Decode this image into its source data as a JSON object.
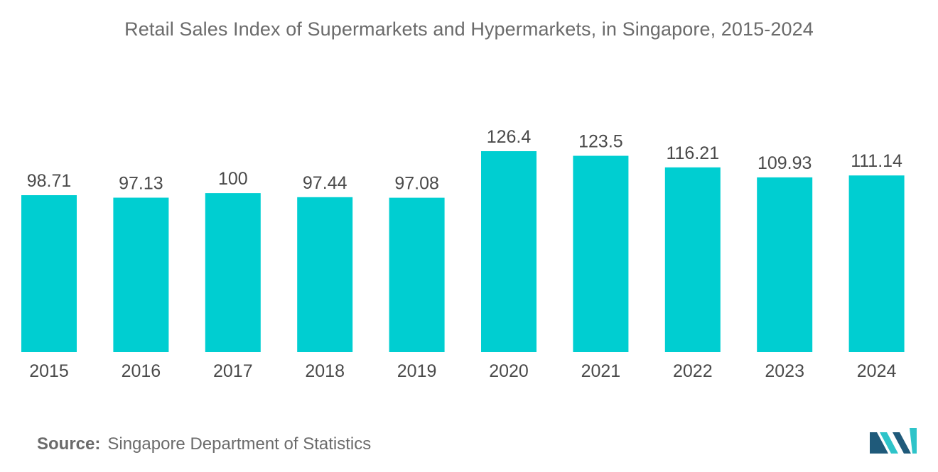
{
  "chart_data": {
    "type": "bar",
    "title": "Retail Sales Index of Supermarkets and Hypermarkets, in Singapore, 2015-2024",
    "categories": [
      "2015",
      "2016",
      "2017",
      "2018",
      "2019",
      "2020",
      "2021",
      "2022",
      "2023",
      "2024"
    ],
    "values": [
      98.71,
      97.13,
      100,
      97.44,
      97.08,
      126.4,
      123.5,
      116.21,
      109.93,
      111.14
    ],
    "value_labels": [
      "98.71",
      "97.13",
      "100",
      "97.44",
      "97.08",
      "126.4",
      "123.5",
      "116.21",
      "109.93",
      "111.14"
    ],
    "xlabel": "",
    "ylabel": "",
    "ylim": [
      0,
      126.4
    ],
    "grid": false,
    "legend": "none",
    "bar_color": "#00ced1"
  },
  "source": {
    "label": "Source:",
    "text": "Singapore Department of Statistics"
  },
  "logo": {
    "icon": "mordor-intelligence-logo-icon",
    "color_dark": "#1f5a7a",
    "color_light": "#2ec4c9"
  }
}
